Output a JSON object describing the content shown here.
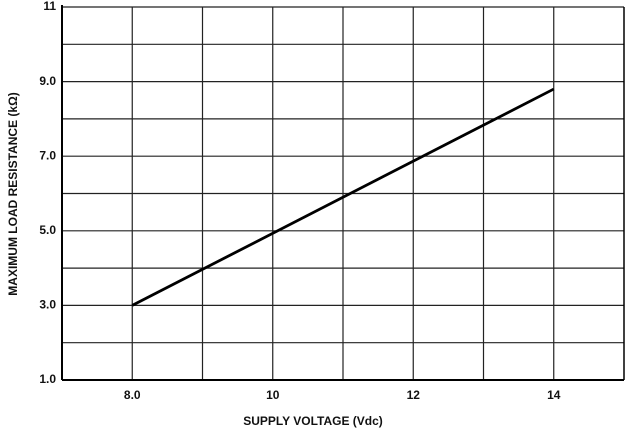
{
  "chart_data": {
    "type": "line",
    "xlabel": "SUPPLY VOLTAGE (Vdc)",
    "ylabel": "MAXIMUM LOAD RESISTANCE (kΩ)",
    "x": [
      8,
      14
    ],
    "series": [
      {
        "color": "#000000",
        "values": [
          3.0,
          8.8
        ]
      }
    ],
    "xlim": [
      7,
      15
    ],
    "xticks": [
      {
        "value": 8,
        "label": "8.0"
      },
      10,
      12,
      14
    ],
    "xminorticks": [
      9,
      11,
      13
    ],
    "ylim": [
      1,
      11
    ],
    "yticks": [
      {
        "value": 1,
        "label": "1.0"
      },
      {
        "value": 3,
        "label": "3.0"
      },
      {
        "value": 5,
        "label": "5.0"
      },
      {
        "value": 7,
        "label": "7.0"
      },
      {
        "value": 9,
        "label": "9.0"
      },
      11
    ],
    "yminorticks": [
      2,
      4,
      6,
      8,
      10
    ],
    "grid": true
  }
}
